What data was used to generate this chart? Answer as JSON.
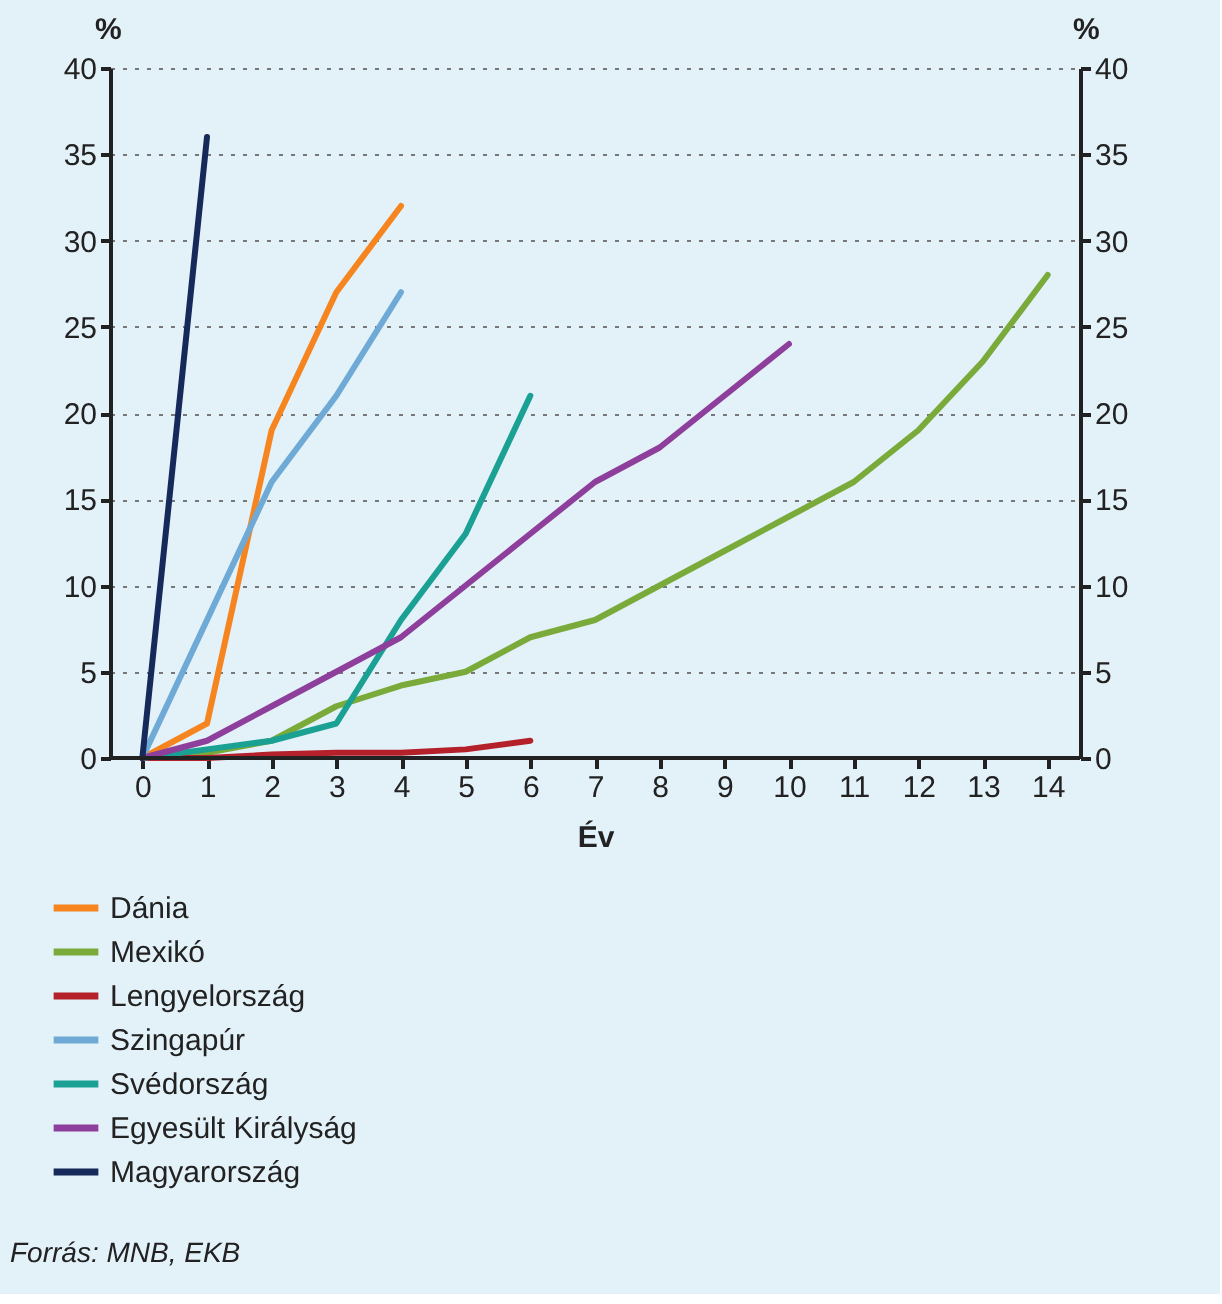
{
  "chart_data": {
    "type": "line",
    "xlabel": "Év",
    "ylabel": "%",
    "y2label": "%",
    "x": [
      0,
      1,
      2,
      3,
      4,
      5,
      6,
      7,
      8,
      9,
      10,
      11,
      12,
      13,
      14
    ],
    "xlim": [
      -0.5,
      14.5
    ],
    "xticks": [
      0,
      1,
      2,
      3,
      4,
      5,
      6,
      7,
      8,
      9,
      10,
      11,
      12,
      13,
      14
    ],
    "ylim": [
      0,
      40
    ],
    "yticks": [
      0,
      5,
      10,
      15,
      20,
      25,
      30,
      35,
      40
    ],
    "y2lim": [
      0,
      40
    ],
    "y2ticks": [
      0,
      5,
      10,
      15,
      20,
      25,
      30,
      35,
      40
    ],
    "grid": "y",
    "legend": "bottom",
    "marker": "none",
    "line_style": "solid",
    "series": [
      {
        "name": "Dánia",
        "color": "#f7851f",
        "values": [
          0,
          2,
          19,
          27,
          32,
          null,
          null,
          null,
          null,
          null,
          null,
          null,
          null,
          null,
          null
        ]
      },
      {
        "name": "Mexikó",
        "color": "#7aab3a",
        "values": [
          0,
          0.3,
          1,
          3,
          4.2,
          5,
          7,
          8,
          10,
          12,
          14,
          16,
          19,
          23,
          28
        ]
      },
      {
        "name": "Lengyelország",
        "color": "#b5212a",
        "values": [
          0,
          0,
          0.2,
          0.3,
          0.3,
          0.5,
          1,
          null,
          null,
          null,
          null,
          null,
          null,
          null,
          null
        ]
      },
      {
        "name": "Szingapúr",
        "color": "#6eaad5",
        "values": [
          0,
          8,
          16,
          21,
          27,
          null,
          null,
          null,
          null,
          null,
          null,
          null,
          null,
          null,
          null
        ]
      },
      {
        "name": "Svédország",
        "color": "#1aa194",
        "values": [
          0,
          0.5,
          1,
          2,
          8,
          13,
          21,
          null,
          null,
          null,
          null,
          null,
          null,
          null,
          null
        ]
      },
      {
        "name": "Egyesült Királyság",
        "color": "#8e3f9b",
        "values": [
          0,
          1,
          3,
          5,
          7,
          10,
          13,
          16,
          18,
          21,
          24,
          null,
          null,
          null,
          null
        ]
      },
      {
        "name": "Magyarország",
        "color": "#15295a",
        "values": [
          0,
          36,
          null,
          null,
          null,
          null,
          null,
          null,
          null,
          null,
          null,
          null,
          null,
          null,
          null
        ]
      }
    ],
    "annotations": [
      "Forrás: MNB, EKB"
    ]
  }
}
